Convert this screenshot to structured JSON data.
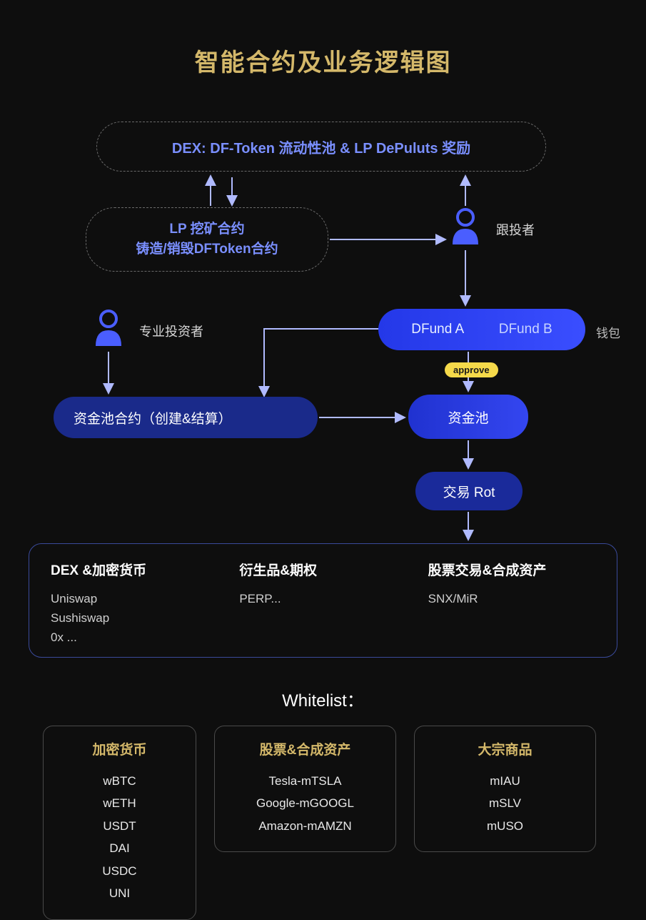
{
  "title": "智能合约及业务逻辑图",
  "colors": {
    "background": "#0e0e0e",
    "title": "#d4b86a",
    "dashed_border": "#6a6a6a",
    "dashed_text": "#7a8fff",
    "pill_blue_light": "#3a4eff",
    "pill_blue_dark": "#1a2a8a",
    "approve_bg": "#f5d94a",
    "approve_text": "#1a1a1a",
    "panel_border": "#3a4a9a",
    "whitelist_title": "#d4b86a",
    "user_icon": "#4a5eff",
    "arrow": "#b0baff",
    "body_text": "#cfcfcf",
    "label_text": "#d8d8d8"
  },
  "dashed_nodes": {
    "dex": "DEX: DF-Token 流动性池 & LP DePuluts 奖励",
    "lp_line1": "LP 挖矿合约",
    "lp_line2": "铸造/销毁DFToken合约"
  },
  "actors": {
    "follower": "跟投者",
    "investor": "专业投资者",
    "wallet": "钱包"
  },
  "dfund": {
    "a": "DFund A",
    "b": "DFund B"
  },
  "approve": "approve",
  "pool_contract": "资金池合约（创建&结算）",
  "pool": "资金池",
  "trade": "交易 Rot",
  "platforms": {
    "col1": {
      "title": "DEX &加密货币",
      "body": "Uniswap\nSushiswap\n0x ..."
    },
    "col2": {
      "title": "衍生品&期权",
      "body": "PERP..."
    },
    "col3": {
      "title": "股票交易&合成资产",
      "body": "SNX/MiR"
    }
  },
  "whitelist_header": "Whitelist：",
  "whitelist": {
    "crypto": {
      "title": "加密货币",
      "items": [
        "wBTC",
        "wETH",
        "USDT",
        "DAI",
        "USDC",
        "UNI"
      ]
    },
    "stocks": {
      "title": "股票&合成资产",
      "items": [
        "Tesla-mTSLA",
        "Google-mGOOGL",
        "Amazon-mAMZN"
      ]
    },
    "commod": {
      "title": "大宗商品",
      "items": [
        "mIAU",
        "mSLV",
        "mUSO"
      ]
    }
  }
}
